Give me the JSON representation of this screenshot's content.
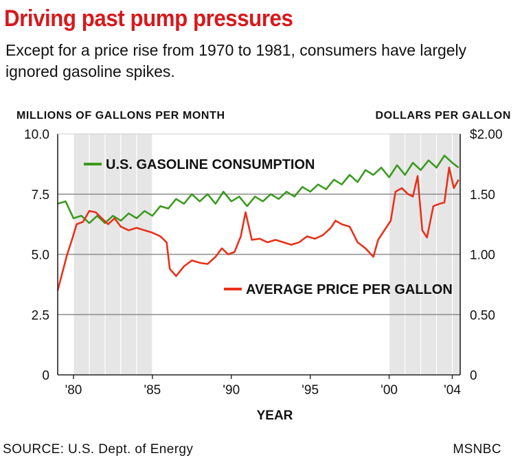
{
  "title": "Driving past pump pressures",
  "subtitle": "Except for a price rise from 1970 to 1981, consumers have largely ignored gasoline spikes.",
  "left_axis_title": "MILLIONS OF GALLONS PER MONTH",
  "right_axis_title": "DOLLARS PER GALLON",
  "source": "SOURCE: U.S. Dept. of Energy",
  "credit": "MSNBC",
  "colors": {
    "consumption": "#3a9a1e",
    "price": "#e8311a",
    "shade": "#e6e6e6",
    "grid": "#8c8c8c",
    "title": "#d7191c"
  },
  "chart_data": {
    "type": "line",
    "xlabel": "YEAR",
    "x_ticks": [
      "'80",
      "'85",
      "'90",
      "'95",
      "'00",
      "'04"
    ],
    "x_tick_values": [
      1980,
      1985,
      1990,
      1995,
      2000,
      2004
    ],
    "xlim": [
      1979,
      2004.5
    ],
    "ylim_left": [
      0,
      10
    ],
    "ylim_right": [
      0,
      2.0
    ],
    "left_ticks": [
      "0",
      "2.5",
      "5.0",
      "7.5",
      "10.0"
    ],
    "left_tick_values": [
      0,
      2.5,
      5.0,
      7.5,
      10.0
    ],
    "right_ticks": [
      "0",
      "0.50",
      "1.00",
      "1.50",
      "$2.00"
    ],
    "right_tick_values": [
      0,
      0.5,
      1.0,
      1.5,
      2.0
    ],
    "shaded_periods": [
      [
        1980,
        1985
      ],
      [
        2000,
        2004.5
      ]
    ],
    "grid": true,
    "series": [
      {
        "name": "U.S. GASOLINE CONSUMPTION",
        "axis": "left",
        "x": [
          1979.0,
          1979.5,
          1980.0,
          1980.5,
          1981.0,
          1981.5,
          1982.0,
          1982.5,
          1983.0,
          1983.5,
          1984.0,
          1984.5,
          1985.0,
          1985.5,
          1986.0,
          1986.5,
          1987.0,
          1987.5,
          1988.0,
          1988.5,
          1989.0,
          1989.5,
          1990.0,
          1990.5,
          1991.0,
          1991.5,
          1992.0,
          1992.5,
          1993.0,
          1993.5,
          1994.0,
          1994.5,
          1995.0,
          1995.5,
          1996.0,
          1996.5,
          1997.0,
          1997.5,
          1998.0,
          1998.5,
          1999.0,
          1999.5,
          2000.0,
          2000.5,
          2001.0,
          2001.5,
          2002.0,
          2002.5,
          2003.0,
          2003.5,
          2004.0,
          2004.4
        ],
        "values": [
          7.1,
          7.2,
          6.5,
          6.6,
          6.3,
          6.6,
          6.3,
          6.6,
          6.4,
          6.7,
          6.5,
          6.8,
          6.6,
          7.0,
          6.9,
          7.3,
          7.1,
          7.5,
          7.2,
          7.5,
          7.1,
          7.6,
          7.2,
          7.4,
          7.0,
          7.4,
          7.2,
          7.5,
          7.3,
          7.6,
          7.4,
          7.8,
          7.6,
          7.9,
          7.7,
          8.1,
          7.9,
          8.3,
          8.0,
          8.5,
          8.3,
          8.6,
          8.2,
          8.7,
          8.3,
          8.8,
          8.5,
          8.9,
          8.6,
          9.1,
          8.8,
          8.6
        ]
      },
      {
        "name": "AVERAGE PRICE PER GALLON",
        "axis": "right",
        "x": [
          1979.0,
          1979.3,
          1979.6,
          1979.9,
          1980.2,
          1980.6,
          1981.0,
          1981.4,
          1981.8,
          1982.2,
          1982.6,
          1983.0,
          1983.5,
          1984.0,
          1984.5,
          1985.0,
          1985.5,
          1985.9,
          1986.1,
          1986.5,
          1987.0,
          1987.5,
          1988.0,
          1988.5,
          1989.0,
          1989.4,
          1989.8,
          1990.2,
          1990.6,
          1990.9,
          1991.3,
          1991.8,
          1992.3,
          1992.8,
          1993.3,
          1993.8,
          1994.3,
          1994.8,
          1995.3,
          1995.8,
          1996.3,
          1996.6,
          1997.0,
          1997.5,
          1998.0,
          1998.5,
          1999.0,
          1999.3,
          1999.7,
          2000.1,
          2000.4,
          2000.8,
          2001.2,
          2001.5,
          2001.8,
          2002.1,
          2002.4,
          2002.8,
          2003.2,
          2003.5,
          2003.8,
          2004.1,
          2004.4
        ],
        "values": [
          0.7,
          0.85,
          1.0,
          1.12,
          1.25,
          1.27,
          1.36,
          1.35,
          1.3,
          1.25,
          1.3,
          1.23,
          1.2,
          1.22,
          1.2,
          1.18,
          1.15,
          1.1,
          0.88,
          0.82,
          0.9,
          0.95,
          0.93,
          0.92,
          0.98,
          1.05,
          1.0,
          1.02,
          1.15,
          1.35,
          1.12,
          1.13,
          1.1,
          1.12,
          1.1,
          1.08,
          1.1,
          1.15,
          1.13,
          1.16,
          1.22,
          1.28,
          1.25,
          1.23,
          1.1,
          1.05,
          0.98,
          1.12,
          1.2,
          1.28,
          1.52,
          1.55,
          1.5,
          1.48,
          1.65,
          1.2,
          1.14,
          1.4,
          1.42,
          1.43,
          1.72,
          1.55,
          1.62
        ]
      }
    ],
    "legend": "inside-plot, labels near lines"
  }
}
